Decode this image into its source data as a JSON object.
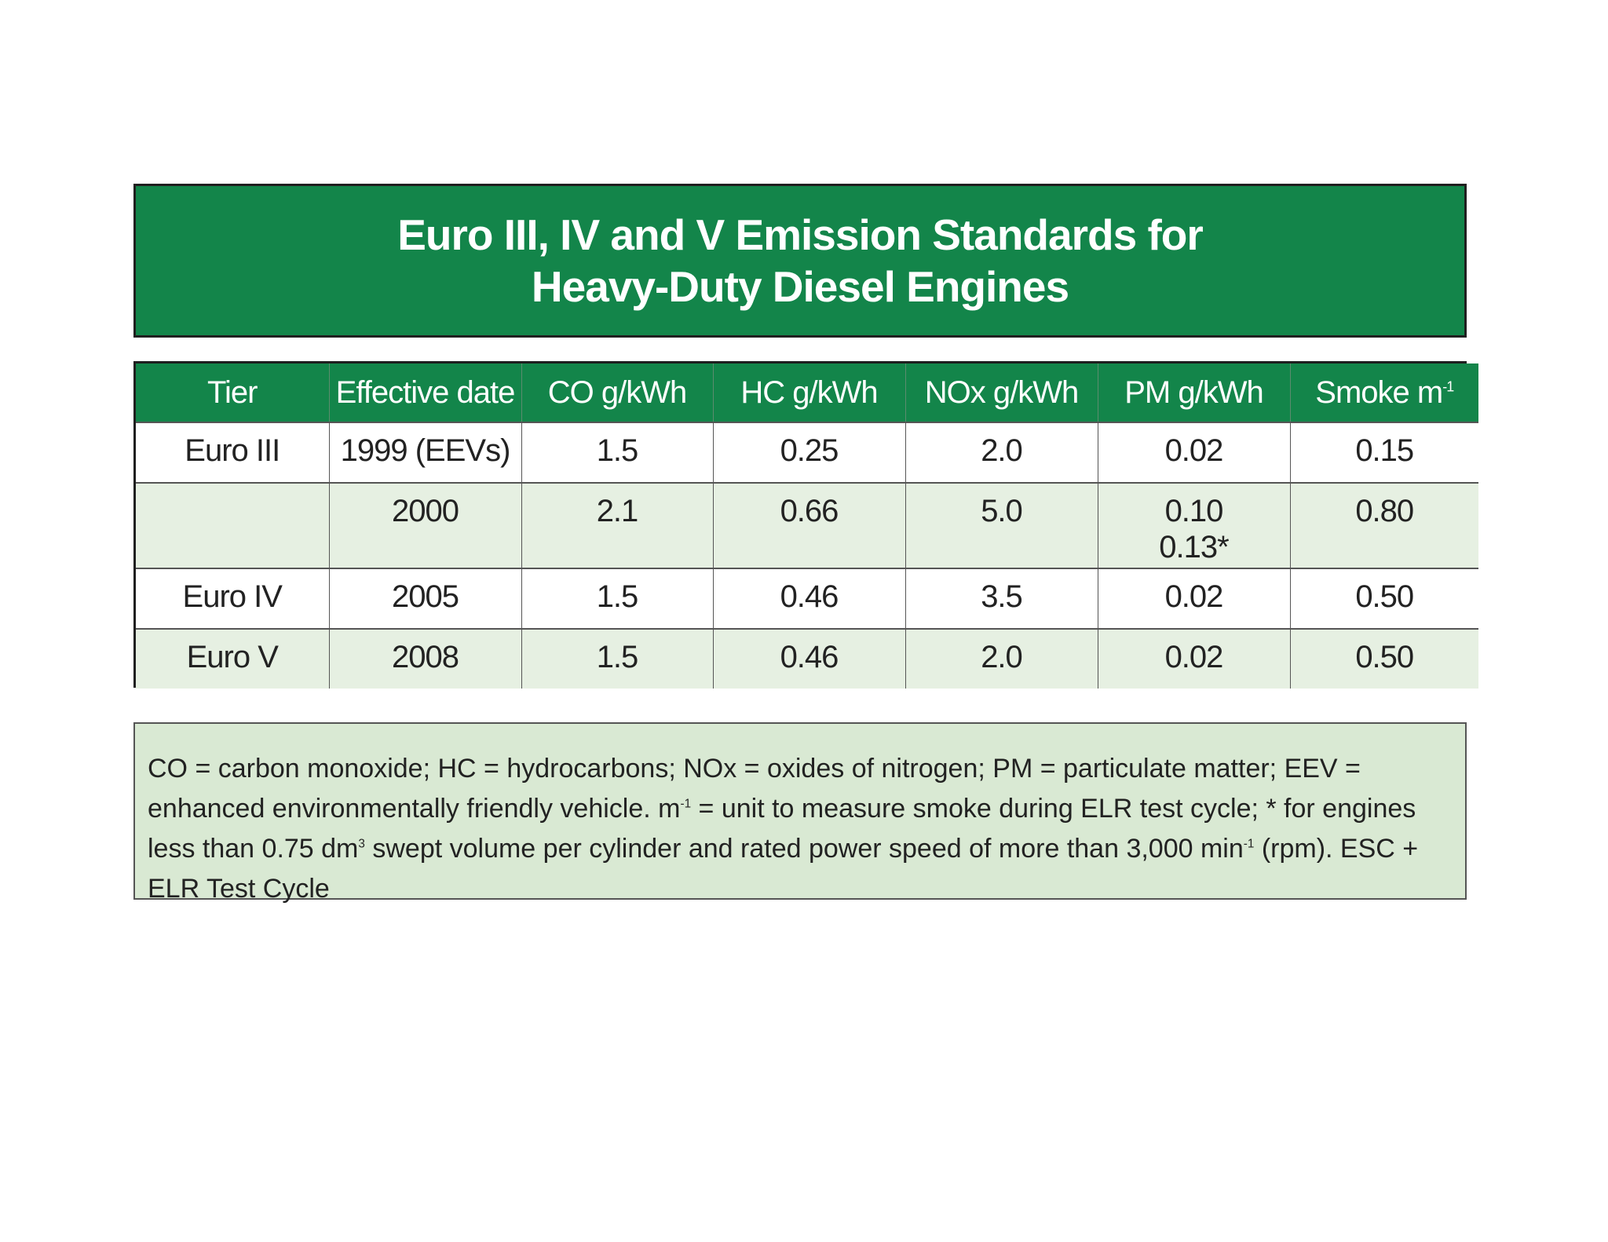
{
  "title": {
    "line1": "Euro III, IV and V Emission Standards for",
    "line2": "Heavy-Duty Diesel Engines"
  },
  "table": {
    "headers": [
      "Tier",
      "Effective date",
      "CO g/kWh",
      "HC g/kWh",
      "NOx g/kWh",
      "PM g/kWh",
      "Smoke m"
    ],
    "smoke_sup": "-1",
    "rows": [
      {
        "tier": "Euro III",
        "date": "1999 (EEVs)",
        "co": "1.5",
        "hc": "0.25",
        "nox": "2.0",
        "pm": "0.02",
        "pm2": "",
        "smoke": "0.15"
      },
      {
        "tier": "",
        "date": "2000",
        "co": "2.1",
        "hc": "0.66",
        "nox": "5.0",
        "pm": "0.10",
        "pm2": "0.13*",
        "smoke": "0.80"
      },
      {
        "tier": "Euro IV",
        "date": "2005",
        "co": "1.5",
        "hc": "0.46",
        "nox": "3.5",
        "pm": "0.02",
        "pm2": "",
        "smoke": "0.50"
      },
      {
        "tier": "Euro V",
        "date": "2008",
        "co": "1.5",
        "hc": "0.46",
        "nox": "2.0",
        "pm": "0.02",
        "pm2": "",
        "smoke": "0.50"
      }
    ]
  },
  "note": {
    "part1": "CO = carbon monoxide; HC = hydrocarbons; NOx = oxides of nitrogen; PM = particulate matter; EEV = enhanced environmentally friendly vehicle. m",
    "sup1": "-1",
    "part2": " = unit to measure smoke during ELR test cycle; * for engines less than 0.75 dm",
    "sup2": "3",
    "part3": " swept volume per cylinder and rated power speed of more than 3,000 min",
    "sup3": "-1",
    "part4": " (rpm). ESC + ELR Test Cycle"
  }
}
